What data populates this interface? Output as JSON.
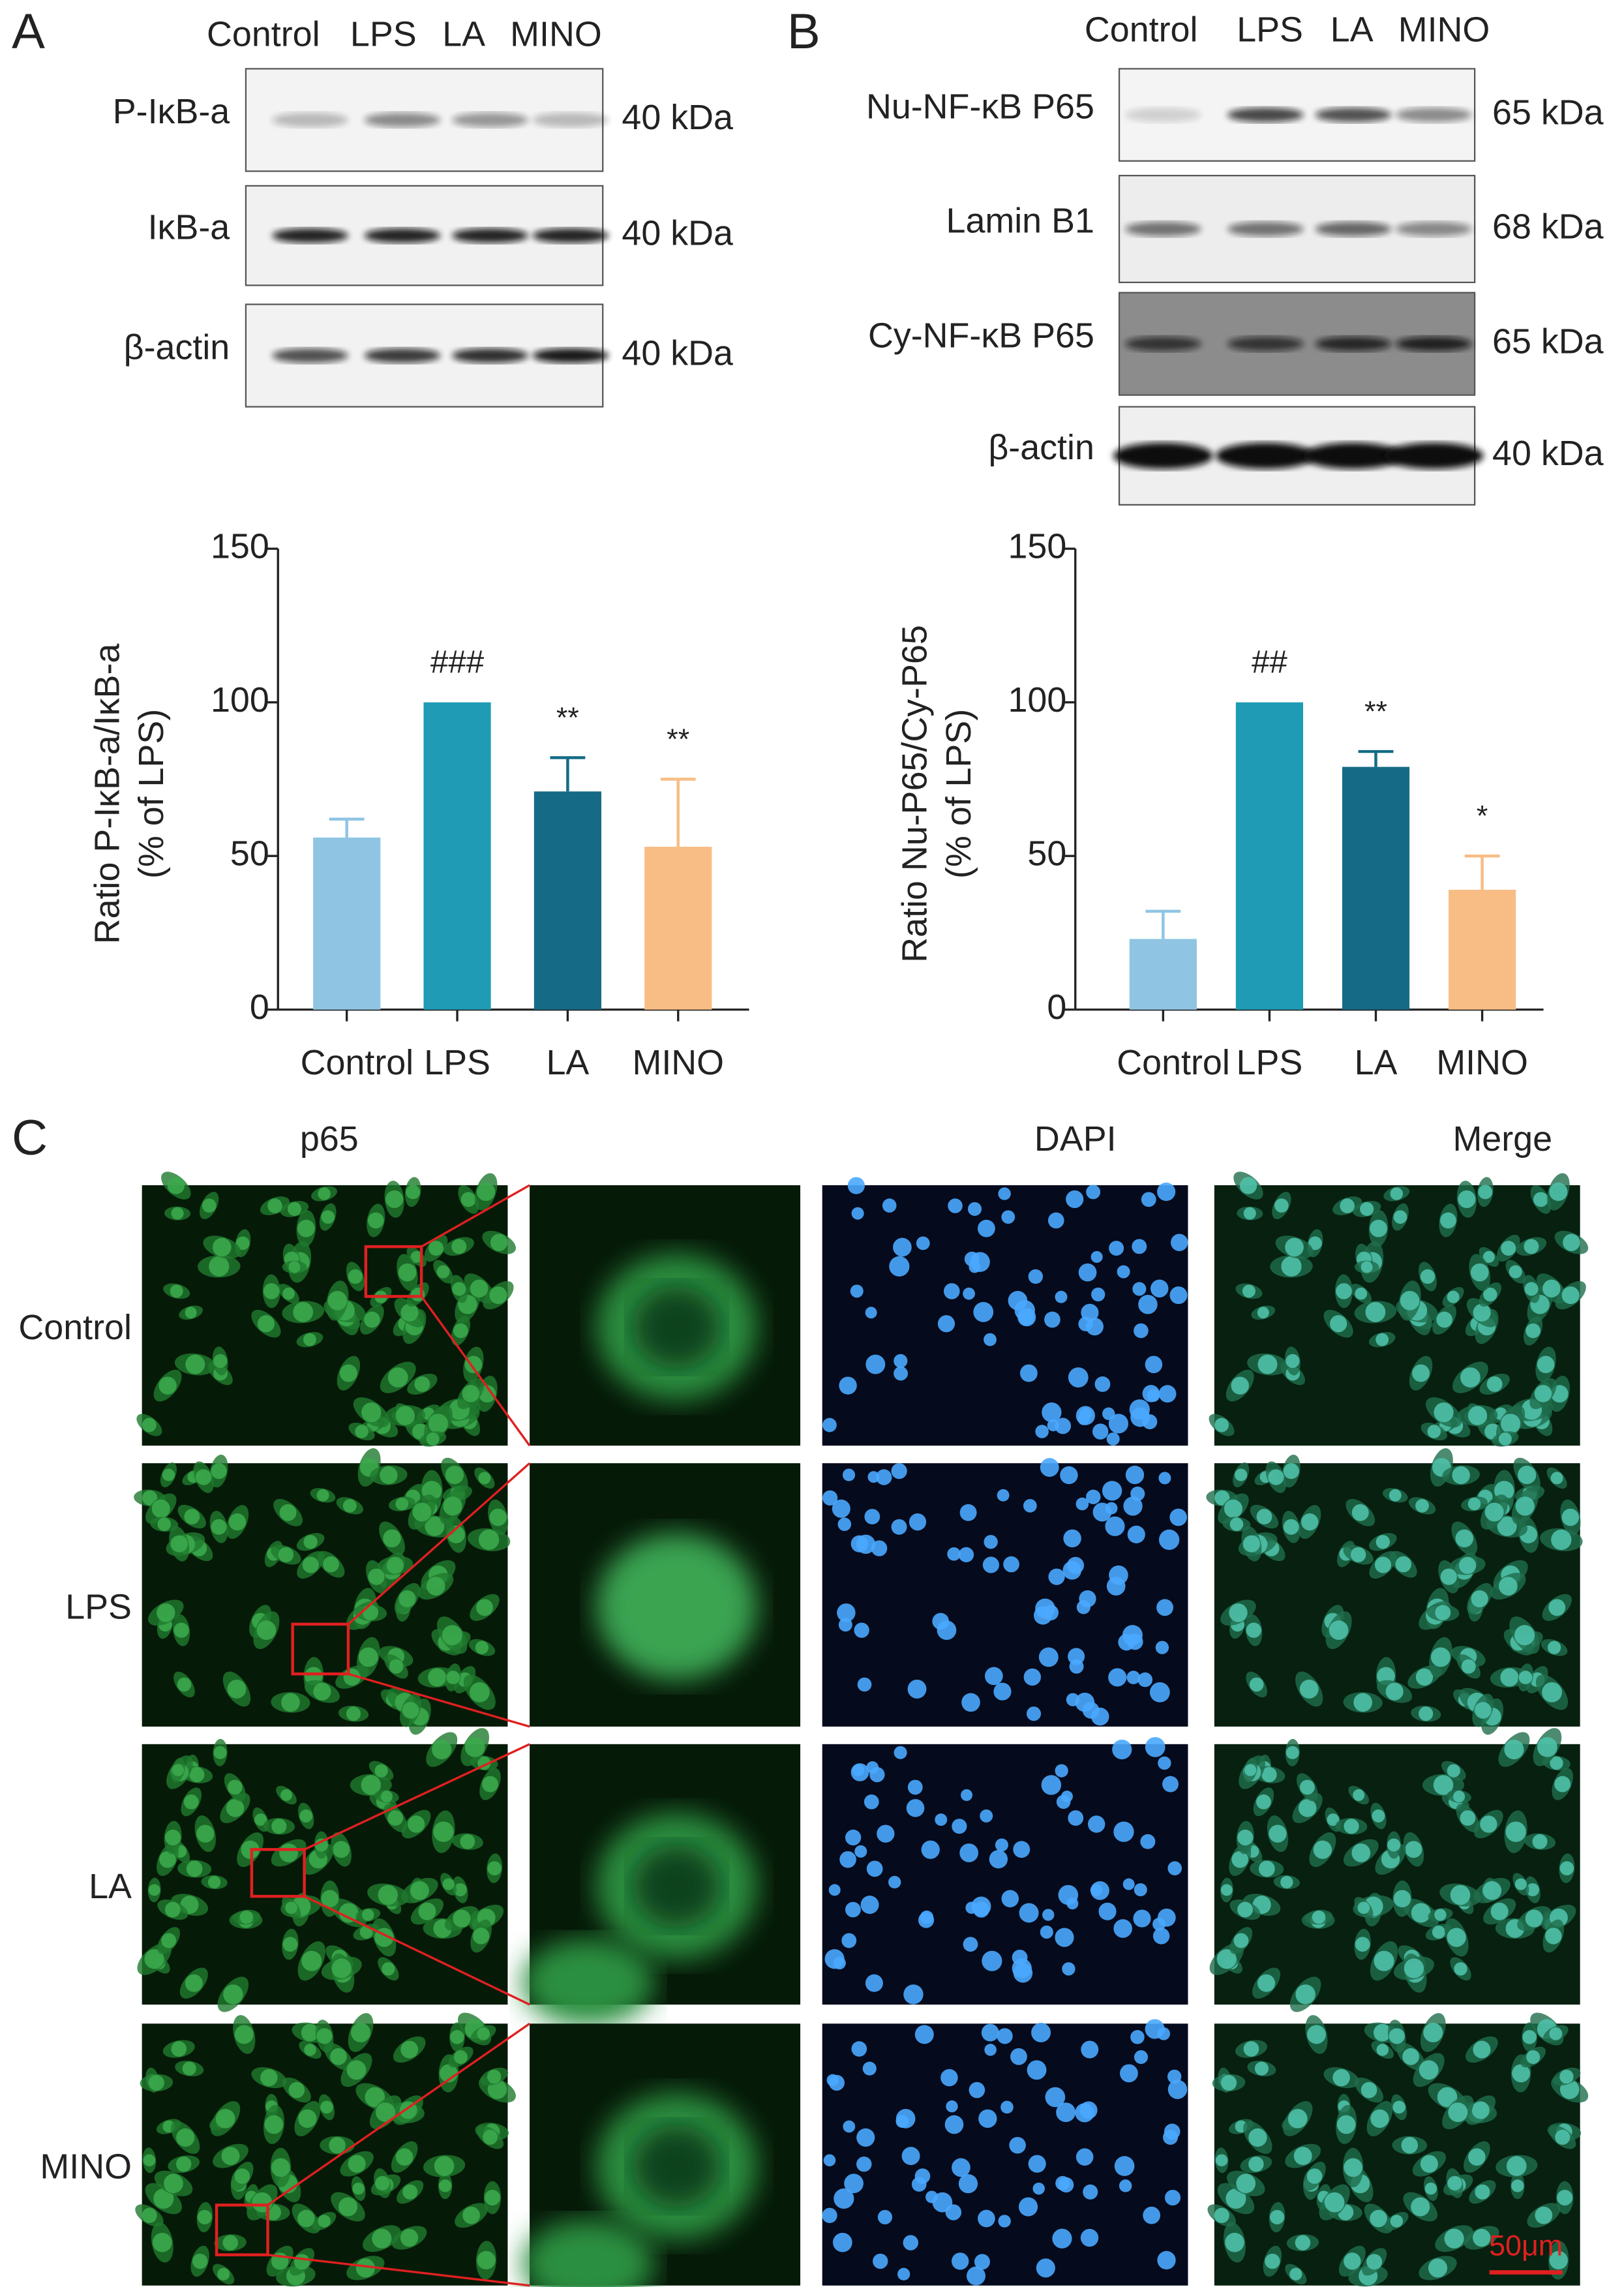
{
  "panel_labels": [
    "A",
    "B",
    "C"
  ],
  "blots": [
    {
      "lanes": [
        "Control",
        "LPS",
        "LA",
        "MINO"
      ],
      "rows": [
        {
          "label": "P-IκB-a",
          "size": "40 kDa"
        },
        {
          "label": "IκB-a",
          "size": "40 kDa"
        },
        {
          "label": "β-actin",
          "size": "40 kDa"
        }
      ]
    },
    {
      "lanes": [
        "Control",
        "LPS",
        "LA",
        "MINO"
      ],
      "rows": [
        {
          "label": "Nu-NF-κB P65",
          "size": "65 kDa"
        },
        {
          "label": "Lamin B1",
          "size": "68 kDa"
        },
        {
          "label": "Cy-NF-κB P65",
          "size": "65 kDa"
        },
        {
          "label": "β-actin",
          "size": "40 kDa"
        }
      ]
    }
  ],
  "chart_data": [
    {
      "type": "bar",
      "ylabel": [
        "Ratio P-IκB-a/IκB-a",
        "(% of LPS)"
      ],
      "categories": [
        "Control",
        "LPS",
        "LA",
        "MINO"
      ],
      "values": [
        56,
        100,
        71,
        53
      ],
      "errors": [
        6,
        null,
        11,
        22
      ],
      "annotations": [
        null,
        "###",
        "**",
        "**"
      ],
      "colors": [
        "#8fc5e3",
        "#1f9bb6",
        "#156b86",
        "#f7bd85"
      ],
      "ylim": [
        0,
        150
      ],
      "yticks": [
        0,
        50,
        100,
        150
      ]
    },
    {
      "type": "bar",
      "ylabel": [
        "Ratio Nu-P65/Cy-P65",
        "(% of LPS)"
      ],
      "categories": [
        "Control",
        "LPS",
        "LA",
        "MINO"
      ],
      "values": [
        23,
        100,
        79,
        39
      ],
      "errors": [
        9,
        null,
        5,
        11
      ],
      "annotations": [
        null,
        "##",
        "**",
        "*"
      ],
      "colors": [
        "#8fc5e3",
        "#1f9bb6",
        "#156b86",
        "#f7bd85"
      ],
      "ylim": [
        0,
        150
      ],
      "yticks": [
        0,
        50,
        100,
        150
      ]
    }
  ],
  "microscopy": {
    "columns": [
      "p65",
      "DAPI",
      "Merge"
    ],
    "rows": [
      "Control",
      "LPS",
      "LA",
      "MINO"
    ],
    "scale_bar": "50μm"
  }
}
